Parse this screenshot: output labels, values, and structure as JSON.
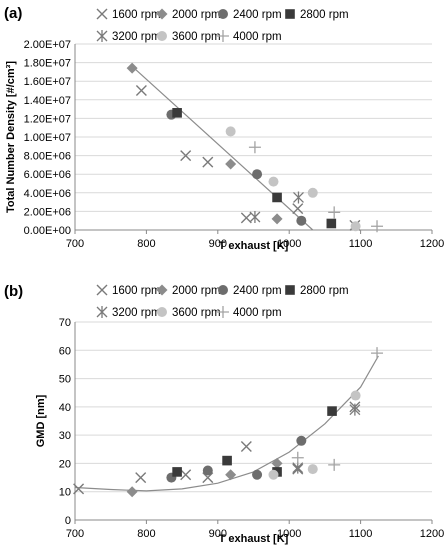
{
  "chart_data": [
    {
      "type": "scatter",
      "panel_label": "(a)",
      "xlabel": "T exhaust [K]",
      "ylabel": "Total Number Density [#/cm³]",
      "xlim": [
        700,
        1200
      ],
      "ylim": [
        0,
        20000000
      ],
      "x_ticks": [
        "700",
        "800",
        "900",
        "1000",
        "1100",
        "1200"
      ],
      "y_ticks": [
        "0.00E+00",
        "2.00E+06",
        "4.00E+06",
        "6.00E+06",
        "8.00E+06",
        "1.00E+07",
        "1.20E+07",
        "1.40E+07",
        "1.60E+07",
        "1.80E+07",
        "2.00E+07"
      ],
      "legend_position": "top",
      "series": [
        {
          "name": "1600 rpm",
          "marker": "x",
          "color": "#7a7a7a",
          "points": [
            [
              793,
              15000000
            ],
            [
              855,
              8000000
            ],
            [
              886,
              7300000
            ],
            [
              940,
              1300000
            ],
            [
              1012,
              2300000
            ],
            [
              1092,
              500000
            ]
          ]
        },
        {
          "name": "2000 rpm",
          "marker": "diamond",
          "color": "#8c8c8c",
          "points": [
            [
              780,
              17400000
            ],
            [
              918,
              7100000
            ],
            [
              983,
              1200000
            ]
          ]
        },
        {
          "name": "2400 rpm",
          "marker": "circle",
          "color": "#6d6d6d",
          "points": [
            [
              835,
              12400000
            ],
            [
              955,
              6000000
            ],
            [
              1017,
              1000000
            ]
          ]
        },
        {
          "name": "2800 rpm",
          "marker": "square",
          "color": "#3a3a3a",
          "points": [
            [
              843,
              12600000
            ],
            [
              983,
              3500000
            ],
            [
              1059,
              700000
            ]
          ]
        },
        {
          "name": "3200 rpm",
          "marker": "asterisk",
          "color": "#7a7a7a",
          "points": [
            [
              952,
              1400000
            ],
            [
              1013,
              3500000
            ]
          ]
        },
        {
          "name": "3600 rpm",
          "marker": "circle",
          "color": "#c4c4c4",
          "points": [
            [
              918,
              10600000
            ],
            [
              978,
              5200000
            ],
            [
              1033,
              4000000
            ],
            [
              1093,
              400000
            ]
          ]
        },
        {
          "name": "4000 rpm",
          "marker": "plus",
          "color": "#a3a3a3",
          "points": [
            [
              952,
              8900000
            ],
            [
              1063,
              1900000
            ],
            [
              1123,
              400000
            ]
          ]
        }
      ],
      "trendline": {
        "color": "#8c8c8c",
        "points": [
          [
            780,
            17600000
          ],
          [
            1033,
            0
          ]
        ]
      }
    },
    {
      "type": "scatter",
      "panel_label": "(b)",
      "xlabel": "T exhaust [K]",
      "ylabel": "GMD [nm]",
      "xlim": [
        700,
        1200
      ],
      "ylim": [
        0,
        70
      ],
      "x_ticks": [
        "700",
        "800",
        "900",
        "1000",
        "1100",
        "1200"
      ],
      "y_ticks": [
        "0",
        "10",
        "20",
        "30",
        "40",
        "50",
        "60",
        "70"
      ],
      "legend_position": "top",
      "series": [
        {
          "name": "1600 rpm",
          "marker": "x",
          "color": "#7a7a7a",
          "points": [
            [
              705,
              11
            ],
            [
              792,
              15
            ],
            [
              855,
              16
            ],
            [
              886,
              15
            ],
            [
              940,
              26
            ],
            [
              1012,
              18
            ],
            [
              1092,
              40
            ]
          ]
        },
        {
          "name": "2000 rpm",
          "marker": "diamond",
          "color": "#8c8c8c",
          "points": [
            [
              780,
              10
            ],
            [
              918,
              16
            ],
            [
              983,
              20
            ]
          ]
        },
        {
          "name": "2400 rpm",
          "marker": "circle",
          "color": "#6d6d6d",
          "points": [
            [
              835,
              15
            ],
            [
              886,
              17.5
            ],
            [
              955,
              16
            ],
            [
              1017,
              28
            ]
          ]
        },
        {
          "name": "2800 rpm",
          "marker": "square",
          "color": "#3a3a3a",
          "points": [
            [
              843,
              17
            ],
            [
              913,
              21
            ],
            [
              983,
              17
            ],
            [
              1060,
              38.5
            ]
          ]
        },
        {
          "name": "3200 rpm",
          "marker": "asterisk",
          "color": "#7a7a7a",
          "points": [
            [
              1012,
              18.5
            ],
            [
              1092,
              39
            ]
          ]
        },
        {
          "name": "3600 rpm",
          "marker": "circle",
          "color": "#c4c4c4",
          "points": [
            [
              978,
              16
            ],
            [
              1033,
              18
            ],
            [
              1093,
              44
            ]
          ]
        },
        {
          "name": "4000 rpm",
          "marker": "plus",
          "color": "#a3a3a3",
          "points": [
            [
              1012,
              22
            ],
            [
              1063,
              19.5
            ],
            [
              1123,
              59
            ]
          ]
        }
      ],
      "trendline": {
        "color": "#8c8c8c",
        "points": [
          [
            700,
            11.5
          ],
          [
            750,
            10.8
          ],
          [
            800,
            10.3
          ],
          [
            850,
            11
          ],
          [
            900,
            13
          ],
          [
            950,
            17
          ],
          [
            1000,
            24
          ],
          [
            1050,
            34
          ],
          [
            1100,
            47
          ],
          [
            1125,
            58
          ]
        ]
      }
    }
  ]
}
